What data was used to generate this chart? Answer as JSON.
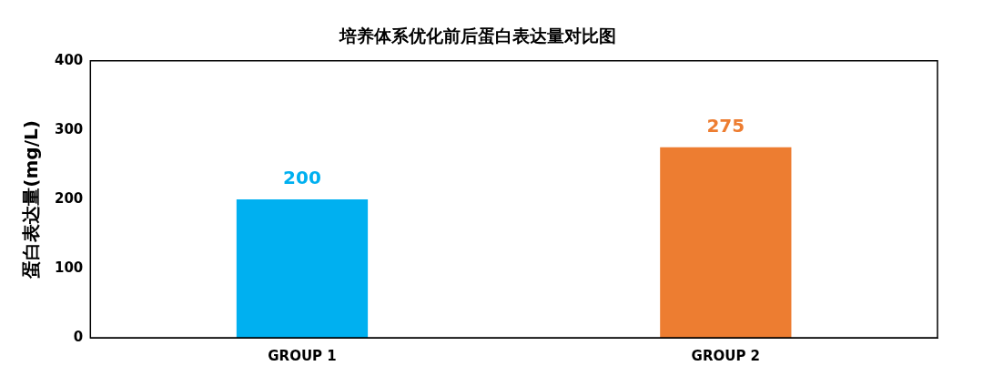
{
  "chart_data": {
    "type": "bar",
    "title": "培养体系优化前后蛋白表达量对比图",
    "ylabel": "蛋白表达量(mg/L)",
    "categories": [
      "GROUP 1",
      "GROUP 2"
    ],
    "values": [
      200,
      275
    ],
    "colors": [
      "#00b0f0",
      "#ed7d31"
    ],
    "ylim": [
      0,
      400
    ],
    "yticks": [
      0,
      100,
      200,
      300,
      400
    ],
    "grid": false,
    "legend": false,
    "data_labels": true
  }
}
